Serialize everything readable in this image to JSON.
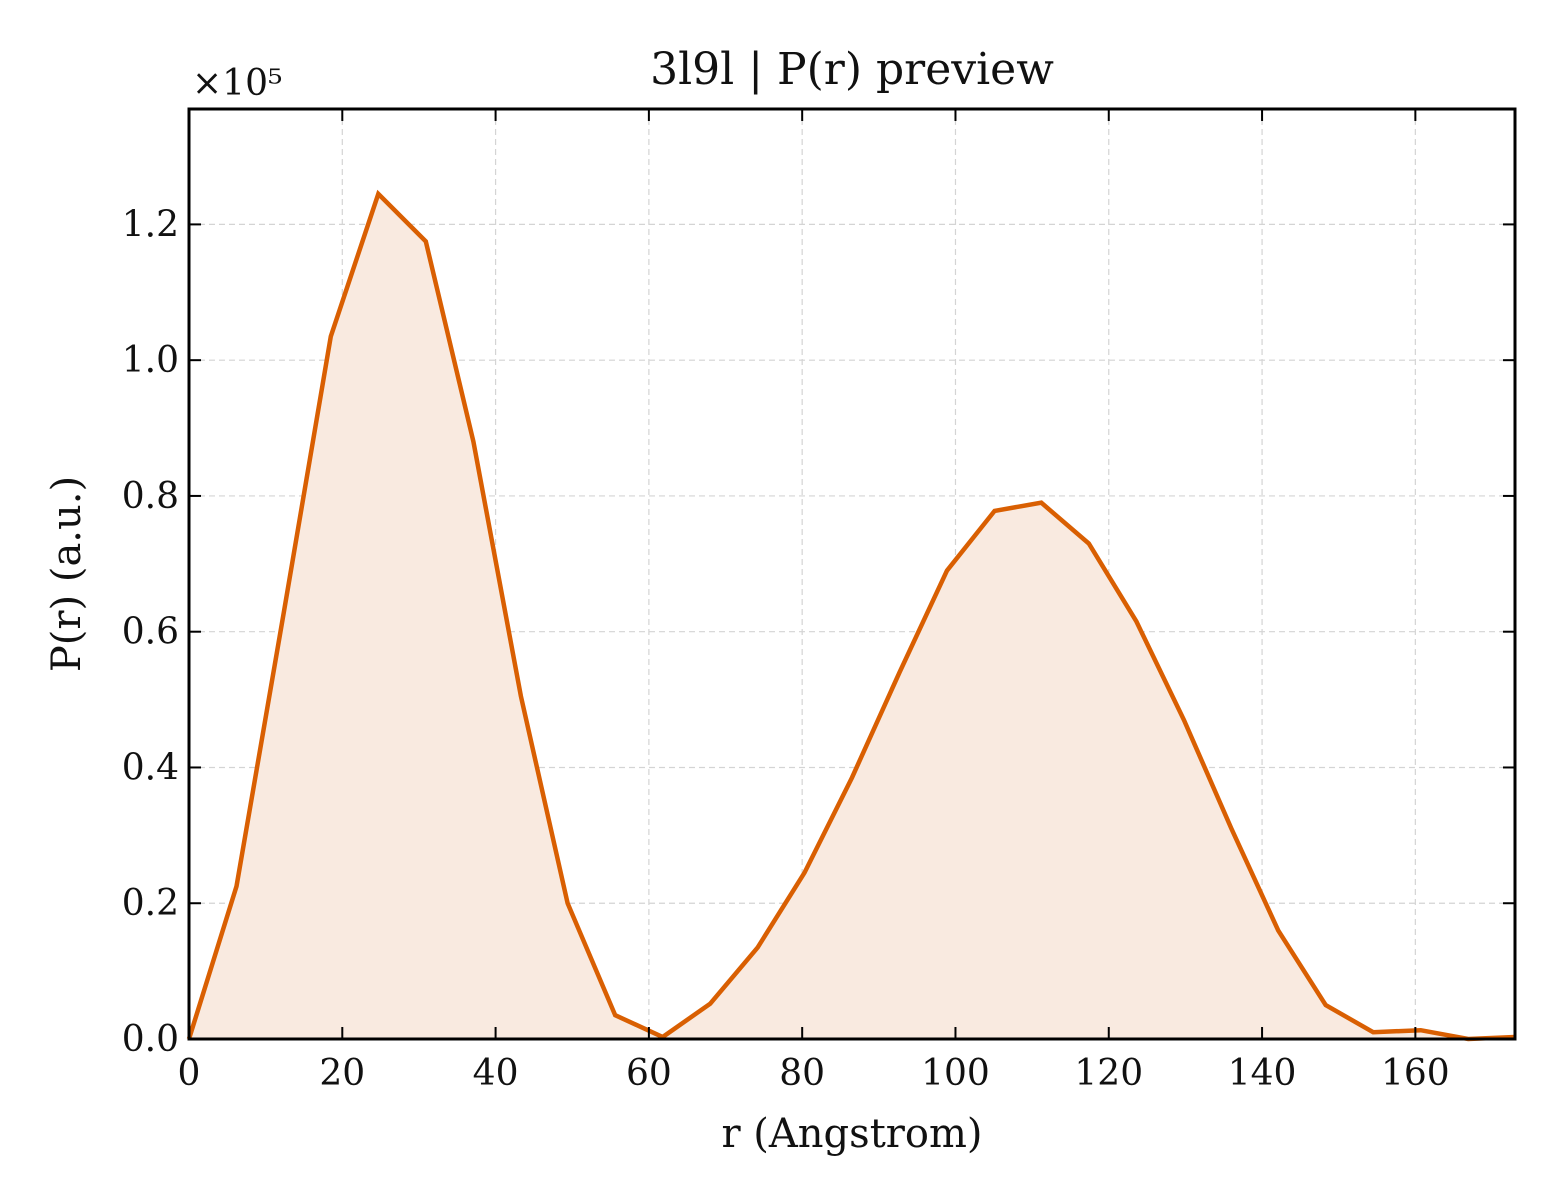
{
  "chart_data": {
    "type": "area",
    "title": "3l9l | P(r) preview",
    "xlabel": "r (Angstrom)",
    "ylabel": "P(r) (a.u.)",
    "y_multiplier_label": "×10⁵",
    "xlim": [
      0,
      173
    ],
    "ylim": [
      0,
      1.37
    ],
    "xticks": [
      0,
      20,
      40,
      60,
      80,
      100,
      120,
      140,
      160
    ],
    "xtick_labels": [
      "0",
      "20",
      "40",
      "60",
      "80",
      "100",
      "120",
      "140",
      "160"
    ],
    "yticks": [
      0,
      0.2,
      0.4,
      0.6,
      0.8,
      1.0,
      1.2
    ],
    "ytick_labels": [
      "0.0",
      "0.2",
      "0.4",
      "0.6",
      "0.8",
      "1.0",
      "1.2"
    ],
    "grid": true,
    "series": [
      {
        "line_color": "#d95f02",
        "fill_color": "#f9eae0",
        "x": [
          0,
          6.2,
          12.4,
          18.5,
          24.7,
          30.9,
          37.1,
          43.3,
          49.4,
          55.6,
          61.8,
          68.0,
          74.2,
          80.3,
          86.5,
          92.7,
          98.9,
          105.1,
          111.2,
          117.4,
          123.6,
          129.8,
          136.0,
          142.1,
          148.3,
          154.5,
          160.7,
          166.9,
          173.0
        ],
        "y": [
          0.0,
          0.225,
          0.63,
          1.035,
          1.245,
          1.175,
          0.88,
          0.505,
          0.2,
          0.035,
          0.003,
          0.052,
          0.135,
          0.245,
          0.385,
          0.54,
          0.69,
          0.778,
          0.79,
          0.73,
          0.615,
          0.47,
          0.31,
          0.16,
          0.05,
          0.01,
          0.013,
          0.0,
          0.003
        ]
      }
    ]
  }
}
